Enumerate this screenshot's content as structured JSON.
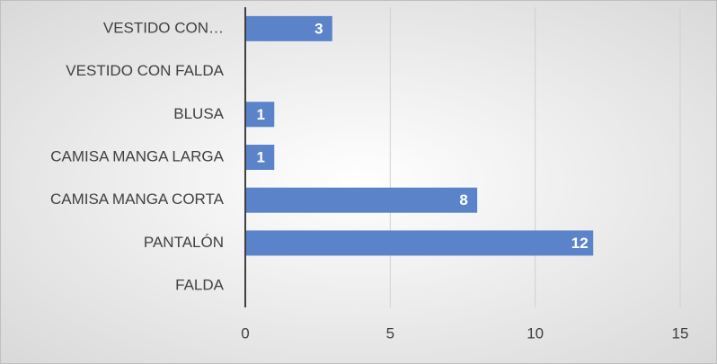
{
  "chart_data": {
    "type": "bar",
    "orientation": "horizontal",
    "categories": [
      "VESTIDO CON…",
      "VESTIDO CON FALDA",
      "BLUSA",
      "CAMISA MANGA LARGA",
      "CAMISA MANGA CORTA",
      "PANTALÓN",
      "FALDA"
    ],
    "values": [
      3,
      null,
      1,
      1,
      8,
      12,
      null
    ],
    "color": "#5a83c9",
    "xlim": [
      0,
      15
    ],
    "xticks": [
      0,
      5,
      10,
      15
    ],
    "grid": true
  }
}
